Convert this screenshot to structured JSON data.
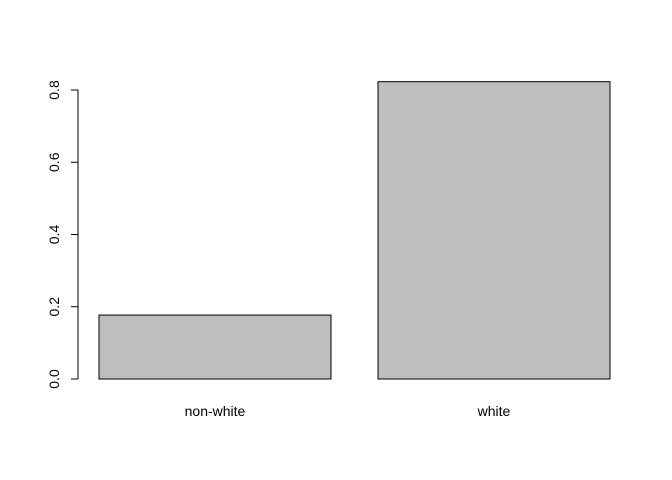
{
  "chart_data": {
    "type": "bar",
    "categories": [
      "non-white",
      "white"
    ],
    "values": [
      0.177,
      0.823
    ],
    "title": "",
    "xlabel": "",
    "ylabel": "",
    "ylim": [
      0,
      0.8
    ],
    "yticks": [
      "0.0",
      "0.2",
      "0.4",
      "0.6",
      "0.8"
    ],
    "grid": false,
    "bar_fill": "#bebebe",
    "bar_stroke": "#000000"
  }
}
